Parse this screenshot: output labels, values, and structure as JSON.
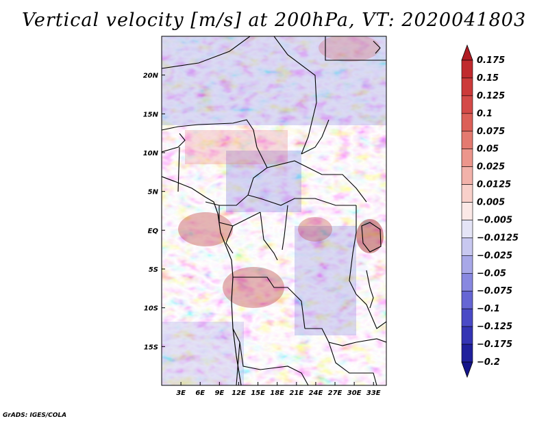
{
  "title": "Vertical velocity [m/s] at 200hPa, VT: 2020041803",
  "footer": "GrADS: IGES/COLA",
  "map": {
    "lon_range": [
      0,
      35
    ],
    "lat_range": [
      -20,
      25
    ],
    "lat_ticks": [
      {
        "value": 20,
        "label": "20N"
      },
      {
        "value": 15,
        "label": "15N"
      },
      {
        "value": 10,
        "label": "10N"
      },
      {
        "value": 5,
        "label": "5N"
      },
      {
        "value": 0,
        "label": "EQ"
      },
      {
        "value": -5,
        "label": "5S"
      },
      {
        "value": -10,
        "label": "10S"
      },
      {
        "value": -15,
        "label": "15S"
      }
    ],
    "lon_ticks": [
      {
        "value": 3,
        "label": "3E"
      },
      {
        "value": 6,
        "label": "6E"
      },
      {
        "value": 9,
        "label": "9E"
      },
      {
        "value": 12,
        "label": "12E"
      },
      {
        "value": 15,
        "label": "15E"
      },
      {
        "value": 18,
        "label": "18E"
      },
      {
        "value": 21,
        "label": "21E"
      },
      {
        "value": 24,
        "label": "24E"
      },
      {
        "value": 27,
        "label": "27E"
      },
      {
        "value": 30,
        "label": "30E"
      },
      {
        "value": 33,
        "label": "33E"
      }
    ]
  },
  "colorbar": {
    "labels": [
      "0.175",
      "0.15",
      "0.125",
      "0.1",
      "0.075",
      "0.05",
      "0.025",
      "0.0125",
      "0.005",
      "−0.005",
      "−0.0125",
      "−0.025",
      "−0.05",
      "−0.075",
      "−0.1",
      "−0.125",
      "−0.175",
      "−0.2"
    ],
    "colors": [
      "#b01c24",
      "#c02a2e",
      "#cc3a3a",
      "#d44a48",
      "#dc6058",
      "#e47a70",
      "#ec968c",
      "#f2b2aa",
      "#f8d0ca",
      "#fbe8e6",
      "#e4e4f6",
      "#c8c8f0",
      "#a8a8e8",
      "#8888e0",
      "#6666d4",
      "#4a4ac6",
      "#3434b4",
      "#20209c",
      "#14148a"
    ]
  }
}
